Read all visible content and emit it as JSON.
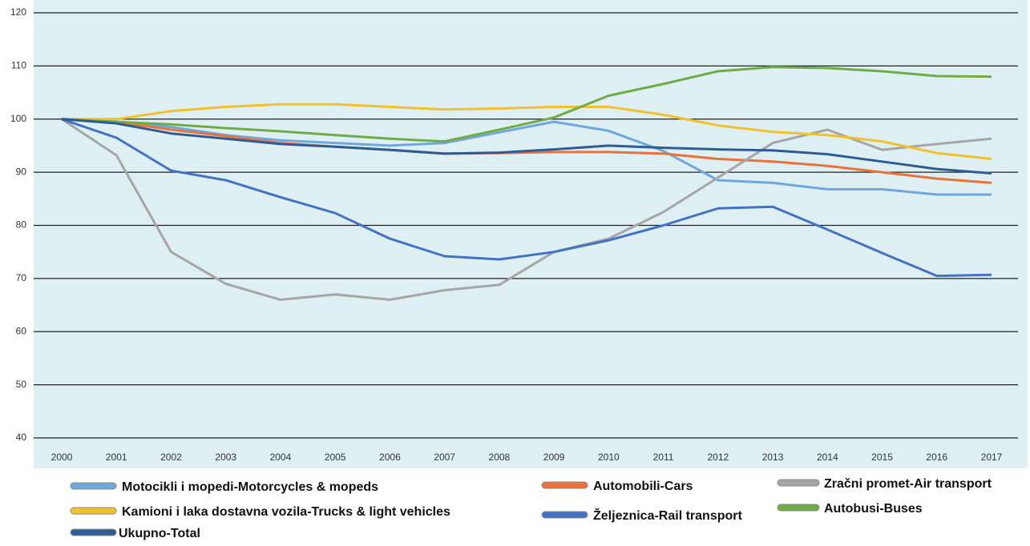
{
  "chart_data": {
    "type": "line",
    "categories": [
      "2000",
      "2001",
      "2002",
      "2003",
      "2004",
      "2005",
      "2006",
      "2007",
      "2008",
      "2009",
      "2010",
      "2011",
      "2012",
      "2013",
      "2014",
      "2015",
      "2016",
      "2017"
    ],
    "ylim": [
      40,
      120
    ],
    "yticks": [
      40,
      50,
      60,
      70,
      80,
      90,
      100,
      110,
      120
    ],
    "grid": true,
    "series": [
      {
        "name": "Motocikli i mopedi-Motorcycles & mopeds",
        "color": "#6fa8dc",
        "values": [
          100,
          99.5,
          98.5,
          97,
          96,
          95.5,
          95,
          95.5,
          97.5,
          99.5,
          97.8,
          94,
          88.5,
          88,
          86.8,
          86.8,
          85.8,
          85.8
        ]
      },
      {
        "name": "Automobili-Cars",
        "color": "#e8743b",
        "values": [
          100,
          99.5,
          98,
          96.8,
          95.5,
          94.8,
          94.2,
          93.5,
          93.6,
          93.8,
          93.8,
          93.5,
          92.5,
          92,
          91.2,
          90,
          88.8,
          88
        ]
      },
      {
        "name": "Zračni promet-Air transport",
        "color": "#a6a6a6",
        "values": [
          100,
          93.2,
          75,
          69,
          66,
          67,
          66,
          67.8,
          68.8,
          75,
          77.5,
          82.5,
          89,
          95.5,
          98,
          94.2,
          95.3,
          96.3
        ]
      },
      {
        "name": "Kamioni i laka dostavna vozila-Trucks & light vehicles",
        "color": "#f2c12e",
        "values": [
          100,
          100,
          101.5,
          102.3,
          102.8,
          102.8,
          102.3,
          101.8,
          102,
          102.3,
          102.3,
          100.8,
          98.8,
          97.6,
          97,
          95.8,
          93.6,
          92.5
        ]
      },
      {
        "name": "Željeznica-Rail transport",
        "color": "#4472c4",
        "values": [
          100,
          96.5,
          90.3,
          88.5,
          85.3,
          82.3,
          77.5,
          74.2,
          73.6,
          75,
          77.2,
          80,
          83.2,
          83.5,
          79.2,
          74.8,
          70.5,
          70.7
        ]
      },
      {
        "name": "Autobusi-Buses",
        "color": "#70ad47",
        "values": [
          100,
          99.5,
          99,
          98.3,
          97.7,
          97,
          96.3,
          95.8,
          98,
          100.3,
          104.4,
          106.6,
          109,
          109.8,
          109.6,
          109,
          108.1,
          108
        ]
      },
      {
        "name": "Ukupno-Total",
        "color": "#2e5c94",
        "values": [
          100,
          99.2,
          97.3,
          96.3,
          95.3,
          94.8,
          94.2,
          93.5,
          93.7,
          94.3,
          95,
          94.6,
          94.3,
          94.1,
          93.4,
          92,
          90.6,
          89.8
        ]
      }
    ]
  }
}
